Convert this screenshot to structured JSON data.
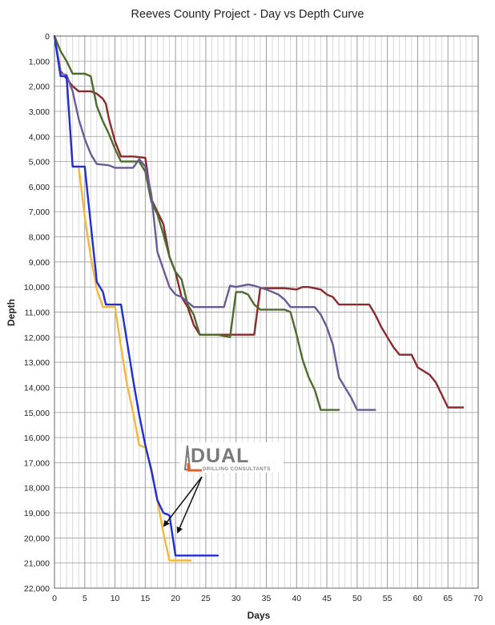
{
  "chart_data": {
    "type": "line",
    "title": "Reeves County Project - Day vs Depth Curve",
    "xlabel": "Days",
    "ylabel": "Depth",
    "xlim": [
      0,
      70
    ],
    "ylim": [
      0,
      22000
    ],
    "y_inverted": true,
    "x_ticks": [
      0,
      5,
      10,
      15,
      20,
      25,
      30,
      35,
      40,
      45,
      50,
      55,
      60,
      65,
      70
    ],
    "x_tick_labels": [
      "0",
      "5",
      "10",
      "15",
      "20",
      "25",
      "30",
      "35",
      "40",
      "45",
      "50",
      "55",
      "60",
      "65",
      "70"
    ],
    "y_ticks": [
      0,
      1000,
      2000,
      3000,
      4000,
      5000,
      6000,
      7000,
      8000,
      9000,
      10000,
      11000,
      12000,
      13000,
      14000,
      15000,
      16000,
      17000,
      18000,
      19000,
      20000,
      21000,
      22000
    ],
    "y_tick_labels": [
      "0",
      "1,000",
      "2,000",
      "3,000",
      "4,000",
      "5,000",
      "6,000",
      "7,000",
      "8,000",
      "9,000",
      "10,000",
      "11,000",
      "12,000",
      "13,000",
      "14,000",
      "15,000",
      "16,000",
      "17,000",
      "18,000",
      "19,000",
      "20,000",
      "21,000",
      "22,000"
    ],
    "grid": true,
    "minor_x_grid_step": 1,
    "series": [
      {
        "color": "#8b2a2a",
        "points": [
          [
            0,
            0
          ],
          [
            1,
            1400
          ],
          [
            2,
            1700
          ],
          [
            3,
            2000
          ],
          [
            4,
            2200
          ],
          [
            6,
            2200
          ],
          [
            7,
            2300
          ],
          [
            8,
            2500
          ],
          [
            8.5,
            2700
          ],
          [
            9,
            3300
          ],
          [
            10,
            4200
          ],
          [
            11,
            4800
          ],
          [
            13,
            4800
          ],
          [
            15,
            4850
          ],
          [
            16,
            6500
          ],
          [
            17,
            7000
          ],
          [
            18,
            7500
          ],
          [
            19,
            8800
          ],
          [
            20,
            9400
          ],
          [
            21,
            10400
          ],
          [
            22,
            10800
          ],
          [
            23,
            11500
          ],
          [
            24,
            11900
          ],
          [
            33,
            11900
          ],
          [
            34,
            10050
          ],
          [
            38,
            10050
          ],
          [
            40,
            10100
          ],
          [
            41,
            10000
          ],
          [
            42,
            10000
          ],
          [
            44,
            10100
          ],
          [
            45,
            10300
          ],
          [
            46,
            10400
          ],
          [
            47,
            10700
          ],
          [
            52,
            10700
          ],
          [
            53,
            11100
          ],
          [
            54,
            11600
          ],
          [
            55,
            12000
          ],
          [
            56,
            12400
          ],
          [
            57,
            12700
          ],
          [
            59,
            12700
          ],
          [
            60,
            13200
          ],
          [
            62,
            13500
          ],
          [
            63,
            13800
          ],
          [
            64,
            14300
          ],
          [
            65,
            14800
          ],
          [
            67.5,
            14800
          ]
        ]
      },
      {
        "color": "#4e6b2e",
        "points": [
          [
            0,
            0
          ],
          [
            1,
            600
          ],
          [
            2,
            1000
          ],
          [
            3,
            1500
          ],
          [
            5,
            1500
          ],
          [
            6,
            1600
          ],
          [
            7,
            2800
          ],
          [
            8,
            3400
          ],
          [
            9,
            3900
          ],
          [
            10,
            4500
          ],
          [
            11,
            5000
          ],
          [
            14,
            5000
          ],
          [
            15,
            5400
          ],
          [
            16,
            6600
          ],
          [
            17,
            7100
          ],
          [
            18,
            7900
          ],
          [
            19,
            8800
          ],
          [
            20,
            9400
          ],
          [
            21,
            9700
          ],
          [
            22,
            10700
          ],
          [
            23,
            11100
          ],
          [
            24,
            11900
          ],
          [
            26,
            11900
          ],
          [
            27,
            11900
          ],
          [
            29,
            12000
          ],
          [
            30,
            10200
          ],
          [
            31,
            10200
          ],
          [
            32,
            10300
          ],
          [
            33,
            10700
          ],
          [
            34,
            10900
          ],
          [
            36,
            10900
          ],
          [
            38,
            10900
          ],
          [
            39,
            11000
          ],
          [
            40,
            11900
          ],
          [
            41,
            12900
          ],
          [
            42,
            13600
          ],
          [
            43,
            14100
          ],
          [
            44,
            14900
          ],
          [
            47,
            14900
          ]
        ]
      },
      {
        "color": "#6b5b95",
        "points": [
          [
            0,
            0
          ],
          [
            1,
            1500
          ],
          [
            2,
            1550
          ],
          [
            3,
            2200
          ],
          [
            4,
            3300
          ],
          [
            5,
            4100
          ],
          [
            6,
            4700
          ],
          [
            7,
            5100
          ],
          [
            9,
            5150
          ],
          [
            10,
            5250
          ],
          [
            13,
            5250
          ],
          [
            14,
            4900
          ],
          [
            15,
            5200
          ],
          [
            16,
            6300
          ],
          [
            17,
            8600
          ],
          [
            18,
            9300
          ],
          [
            19,
            10000
          ],
          [
            20,
            10300
          ],
          [
            21,
            10400
          ],
          [
            22,
            10600
          ],
          [
            23,
            10800
          ],
          [
            25,
            10800
          ],
          [
            28,
            10800
          ],
          [
            29,
            9950
          ],
          [
            30,
            10000
          ],
          [
            31,
            9950
          ],
          [
            32,
            9900
          ],
          [
            33,
            9950
          ],
          [
            35,
            10100
          ],
          [
            36,
            10200
          ],
          [
            37,
            10300
          ],
          [
            38,
            10500
          ],
          [
            39,
            10800
          ],
          [
            41,
            10800
          ],
          [
            43,
            10800
          ],
          [
            44,
            11100
          ],
          [
            45,
            11600
          ],
          [
            46,
            12300
          ],
          [
            47,
            13600
          ],
          [
            48,
            14000
          ],
          [
            49,
            14400
          ],
          [
            50,
            14900
          ],
          [
            53,
            14900
          ]
        ]
      },
      {
        "color": "#f5b73b",
        "points": [
          [
            0,
            0
          ],
          [
            1,
            1550
          ],
          [
            2,
            1600
          ],
          [
            3,
            5200
          ],
          [
            4,
            5200
          ],
          [
            5,
            7200
          ],
          [
            6,
            8800
          ],
          [
            7,
            10100
          ],
          [
            8,
            10800
          ],
          [
            9,
            10800
          ],
          [
            10,
            10800
          ],
          [
            11,
            12400
          ],
          [
            12,
            13900
          ],
          [
            13,
            15000
          ],
          [
            14,
            16300
          ],
          [
            15,
            16400
          ],
          [
            16,
            17200
          ],
          [
            17,
            18500
          ],
          [
            18,
            19800
          ],
          [
            19,
            20900
          ],
          [
            22.5,
            20900
          ]
        ]
      },
      {
        "color": "#1f2ed6",
        "points": [
          [
            0,
            0
          ],
          [
            1,
            1600
          ],
          [
            2,
            1600
          ],
          [
            3,
            5200
          ],
          [
            5,
            5200
          ],
          [
            6,
            7500
          ],
          [
            7,
            9800
          ],
          [
            8,
            10200
          ],
          [
            8.5,
            10700
          ],
          [
            11,
            10700
          ],
          [
            12,
            12200
          ],
          [
            13,
            13700
          ],
          [
            14,
            15100
          ],
          [
            15,
            16300
          ],
          [
            16,
            17300
          ],
          [
            17,
            18500
          ],
          [
            18,
            19000
          ],
          [
            19,
            19100
          ],
          [
            20,
            20700
          ],
          [
            27,
            20700
          ]
        ]
      }
    ]
  },
  "logo": {
    "word": "DUAL",
    "subtitle": "DRILLING CONSULTANTS"
  }
}
